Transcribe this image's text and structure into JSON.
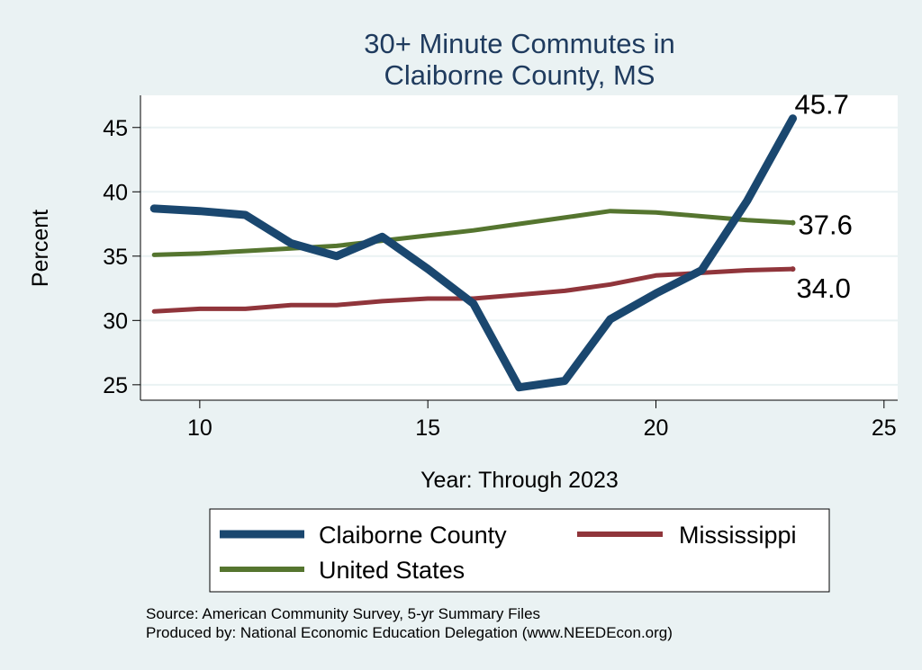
{
  "chart_data": {
    "type": "line",
    "title": [
      "30+ Minute Commutes in",
      "Claiborne County, MS"
    ],
    "xlabel": "Year: Through 2023",
    "ylabel": "Percent",
    "xlim": [
      8.7,
      25.3
    ],
    "ylim": [
      23.8,
      47.5
    ],
    "xticks": [
      10,
      15,
      20,
      25
    ],
    "yticks": [
      25,
      30,
      35,
      40,
      45
    ],
    "grid": "horizontal",
    "legend": "bottom",
    "series": [
      {
        "name": "Claiborne County",
        "color": "#1a476f",
        "x": [
          9,
          10,
          11,
          12,
          13,
          14,
          15,
          16,
          17,
          18,
          19,
          20,
          21,
          22,
          23
        ],
        "y": [
          38.7,
          38.5,
          38.2,
          36.0,
          35.0,
          36.5,
          34.0,
          31.3,
          24.8,
          25.3,
          30.1,
          32.1,
          33.9,
          39.3,
          45.7
        ],
        "end_label": "45.7"
      },
      {
        "name": "Mississippi",
        "color": "#90353b",
        "x": [
          9,
          10,
          11,
          12,
          13,
          14,
          15,
          16,
          17,
          18,
          19,
          20,
          21,
          22,
          23
        ],
        "y": [
          30.7,
          30.9,
          30.9,
          31.2,
          31.2,
          31.5,
          31.7,
          31.7,
          32.0,
          32.3,
          32.8,
          33.5,
          33.7,
          33.9,
          34.0
        ],
        "end_label": "34.0"
      },
      {
        "name": "United States",
        "color": "#55752f",
        "x": [
          9,
          10,
          11,
          12,
          13,
          14,
          15,
          16,
          17,
          18,
          19,
          20,
          21,
          22,
          23
        ],
        "y": [
          35.1,
          35.2,
          35.4,
          35.6,
          35.8,
          36.2,
          36.6,
          37.0,
          37.5,
          38.0,
          38.5,
          38.4,
          38.1,
          37.8,
          37.6
        ],
        "end_label": "37.6"
      }
    ],
    "source_lines": [
      "Source: American Community Survey, 5-yr Summary Files",
      "Produced by: National Economic Education Delegation (www.NEEDEcon.org)"
    ]
  }
}
